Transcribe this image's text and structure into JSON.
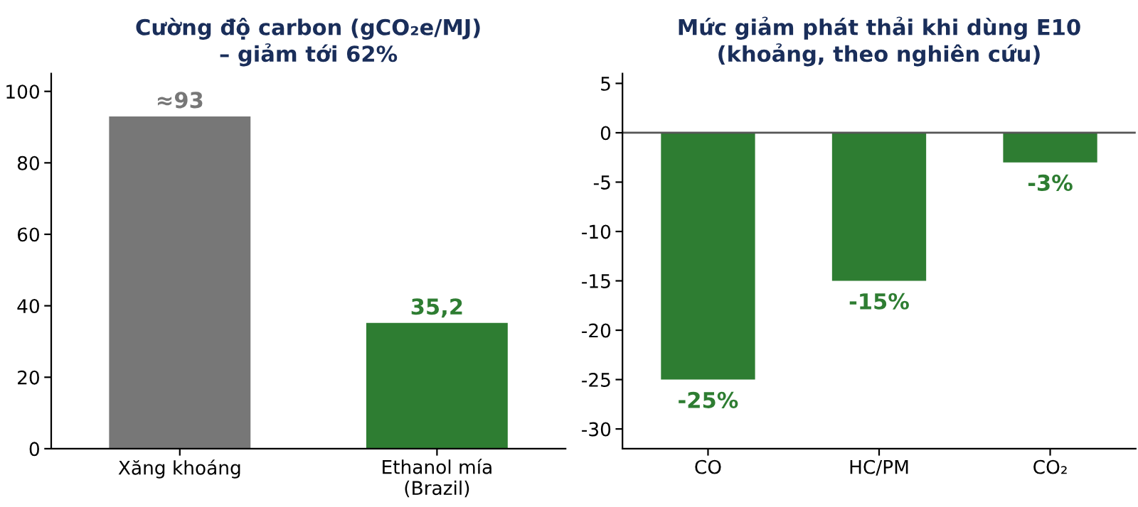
{
  "chart_data": [
    {
      "type": "bar",
      "title": "Cường độ carbon (gCO₂e/MJ)\n– giảm tới 62%",
      "categories": [
        "Xăng khoáng",
        "Ethanol mía\n(Brazil)"
      ],
      "values": [
        93,
        35.2
      ],
      "colors": [
        "#777777",
        "#2e7d32"
      ],
      "value_labels": [
        "≈93",
        "35,2"
      ],
      "ylim": [
        0,
        105
      ],
      "yticks": [
        0,
        20,
        40,
        60,
        80,
        100
      ],
      "grid": false,
      "legend": false
    },
    {
      "type": "bar",
      "title": "Mức giảm phát thải khi dùng E10\n(khoảng, theo nghiên cứu)",
      "categories": [
        "CO",
        "HC/PM",
        "CO₂"
      ],
      "values": [
        -25,
        -15,
        -3
      ],
      "colors": [
        "#2e7d32",
        "#2e7d32",
        "#2e7d32"
      ],
      "value_labels": [
        "-25%",
        "-15%",
        "-3%"
      ],
      "ylim": [
        -32,
        6
      ],
      "yticks": [
        {
          "value": -30,
          "label": "-30"
        },
        {
          "value": -25,
          "label": "-25"
        },
        {
          "value": -20,
          "label": "-20"
        },
        {
          "value": -15,
          "label": "-15"
        },
        {
          "value": -10,
          "label": "-10"
        },
        {
          "value": -5,
          "label": "-5"
        },
        0,
        5
      ],
      "ref_lines": [
        {
          "axis": "y",
          "value": 0,
          "color": "#555555"
        }
      ],
      "grid": false,
      "legend": false
    }
  ]
}
